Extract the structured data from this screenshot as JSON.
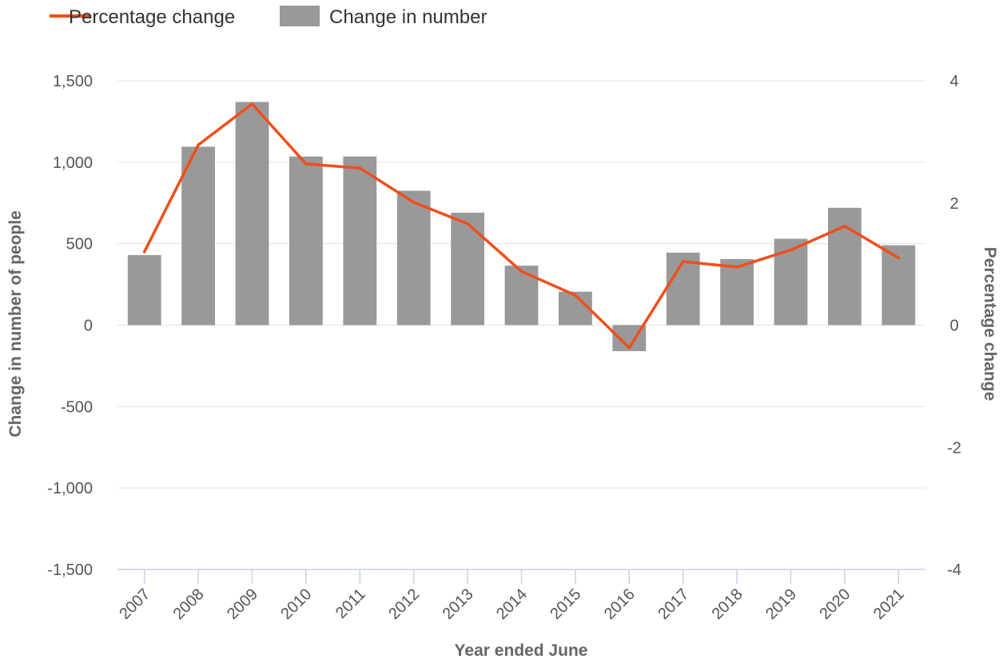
{
  "chart_data": {
    "type": "bar",
    "xlabel": "Year ended June",
    "ylabel": "Change in number of people",
    "y2label": "Percentage change",
    "categories": [
      "2007",
      "2008",
      "2009",
      "2010",
      "2011",
      "2012",
      "2013",
      "2014",
      "2015",
      "2016",
      "2017",
      "2018",
      "2019",
      "2020",
      "2021"
    ],
    "ylim": [
      -1500,
      1500
    ],
    "yticks": [
      "1,500",
      "1,000",
      "500",
      "0",
      "-500",
      "-1,000",
      "-1,500"
    ],
    "y2lim": [
      -4,
      4
    ],
    "y2ticks": [
      "4",
      "2",
      "0",
      "-2",
      "-4"
    ],
    "grid": true,
    "legend_position": "top-left",
    "series": [
      {
        "name": "Change in number",
        "type": "bar",
        "color": "#999999",
        "axis": "left",
        "values": [
          430,
          1095,
          1370,
          1035,
          1035,
          825,
          690,
          365,
          205,
          -160,
          445,
          405,
          530,
          720,
          490
        ]
      },
      {
        "name": "Percentage change",
        "type": "line",
        "color": "#f04e1c",
        "axis": "right",
        "values": [
          1.2,
          2.95,
          3.62,
          2.64,
          2.57,
          2.01,
          1.66,
          0.88,
          0.49,
          -0.37,
          1.04,
          0.95,
          1.23,
          1.62,
          1.1
        ]
      }
    ]
  }
}
